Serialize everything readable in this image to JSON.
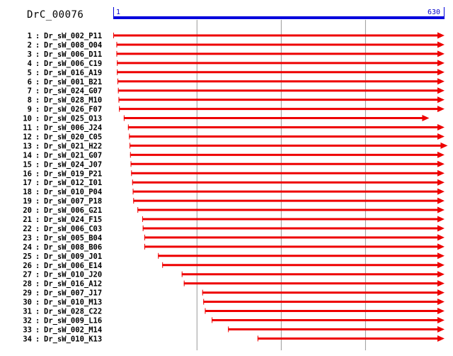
{
  "title": "DrC_00076",
  "ruler": {
    "start": 1,
    "end": 630,
    "start_label": "1",
    "end_label": "630"
  },
  "colors": {
    "ruler": "#0000dd",
    "arrow": "#ee0000",
    "grid": "#999999",
    "label": "#000000"
  },
  "grid_positions": [
    160,
    320,
    480
  ],
  "clones": [
    {
      "index": "1",
      "name": "Dr_sW_002_P11",
      "start": 1,
      "end": 630
    },
    {
      "index": "2",
      "name": "Dr_sW_008_O04",
      "start": 7,
      "end": 630
    },
    {
      "index": "3",
      "name": "Dr_sW_006_D11",
      "start": 7,
      "end": 630
    },
    {
      "index": "4",
      "name": "Dr_sW_006_C19",
      "start": 8,
      "end": 630
    },
    {
      "index": "5",
      "name": "Dr_sW_016_A19",
      "start": 8,
      "end": 630
    },
    {
      "index": "6",
      "name": "Dr_sW_001_B21",
      "start": 9,
      "end": 630
    },
    {
      "index": "7",
      "name": "Dr_sW_024_G07",
      "start": 10,
      "end": 630
    },
    {
      "index": "8",
      "name": "Dr_sW_028_M10",
      "start": 11,
      "end": 630
    },
    {
      "index": "9",
      "name": "Dr_sW_026_F07",
      "start": 12,
      "end": 630
    },
    {
      "index": "10",
      "name": "Dr_sW_025_O13",
      "start": 21,
      "end": 601
    },
    {
      "index": "11",
      "name": "Dr_sW_006_J24",
      "start": 29,
      "end": 630
    },
    {
      "index": "12",
      "name": "Dr_sW_020_C05",
      "start": 31,
      "end": 630
    },
    {
      "index": "13",
      "name": "Dr_sW_021_H22",
      "start": 32,
      "end": 636
    },
    {
      "index": "14",
      "name": "Dr_sW_021_G07",
      "start": 33,
      "end": 630
    },
    {
      "index": "15",
      "name": "Dr_sW_024_J07",
      "start": 34,
      "end": 630
    },
    {
      "index": "16",
      "name": "Dr_sW_019_P21",
      "start": 35,
      "end": 630
    },
    {
      "index": "17",
      "name": "Dr_sW_012_I01",
      "start": 37,
      "end": 630
    },
    {
      "index": "18",
      "name": "Dr_sW_010_P04",
      "start": 38,
      "end": 630
    },
    {
      "index": "19",
      "name": "Dr_sW_007_P18",
      "start": 39,
      "end": 630
    },
    {
      "index": "20",
      "name": "Dr_sW_006_G21",
      "start": 47,
      "end": 630
    },
    {
      "index": "21",
      "name": "Dr_sW_024_F15",
      "start": 56,
      "end": 630
    },
    {
      "index": "22",
      "name": "Dr_sW_006_C03",
      "start": 57,
      "end": 630
    },
    {
      "index": "23",
      "name": "Dr_sW_005_B04",
      "start": 60,
      "end": 630
    },
    {
      "index": "24",
      "name": "Dr_sW_008_B06",
      "start": 60,
      "end": 630
    },
    {
      "index": "25",
      "name": "Dr_sW_009_J01",
      "start": 86,
      "end": 630
    },
    {
      "index": "26",
      "name": "Dr_sW_006_E14",
      "start": 94,
      "end": 630
    },
    {
      "index": "27",
      "name": "Dr_sW_010_J20",
      "start": 131,
      "end": 630
    },
    {
      "index": "28",
      "name": "Dr_sW_016_A12",
      "start": 135,
      "end": 630
    },
    {
      "index": "29",
      "name": "Dr_sW_007_J17",
      "start": 170,
      "end": 630
    },
    {
      "index": "30",
      "name": "Dr_sW_010_M13",
      "start": 172,
      "end": 630
    },
    {
      "index": "31",
      "name": "Dr_sW_028_C22",
      "start": 175,
      "end": 630
    },
    {
      "index": "32",
      "name": "Dr_sW_009_L16",
      "start": 188,
      "end": 630
    },
    {
      "index": "33",
      "name": "Dr_sW_002_M14",
      "start": 219,
      "end": 630
    },
    {
      "index": "34",
      "name": "Dr_sW_010_K13",
      "start": 275,
      "end": 630
    }
  ]
}
